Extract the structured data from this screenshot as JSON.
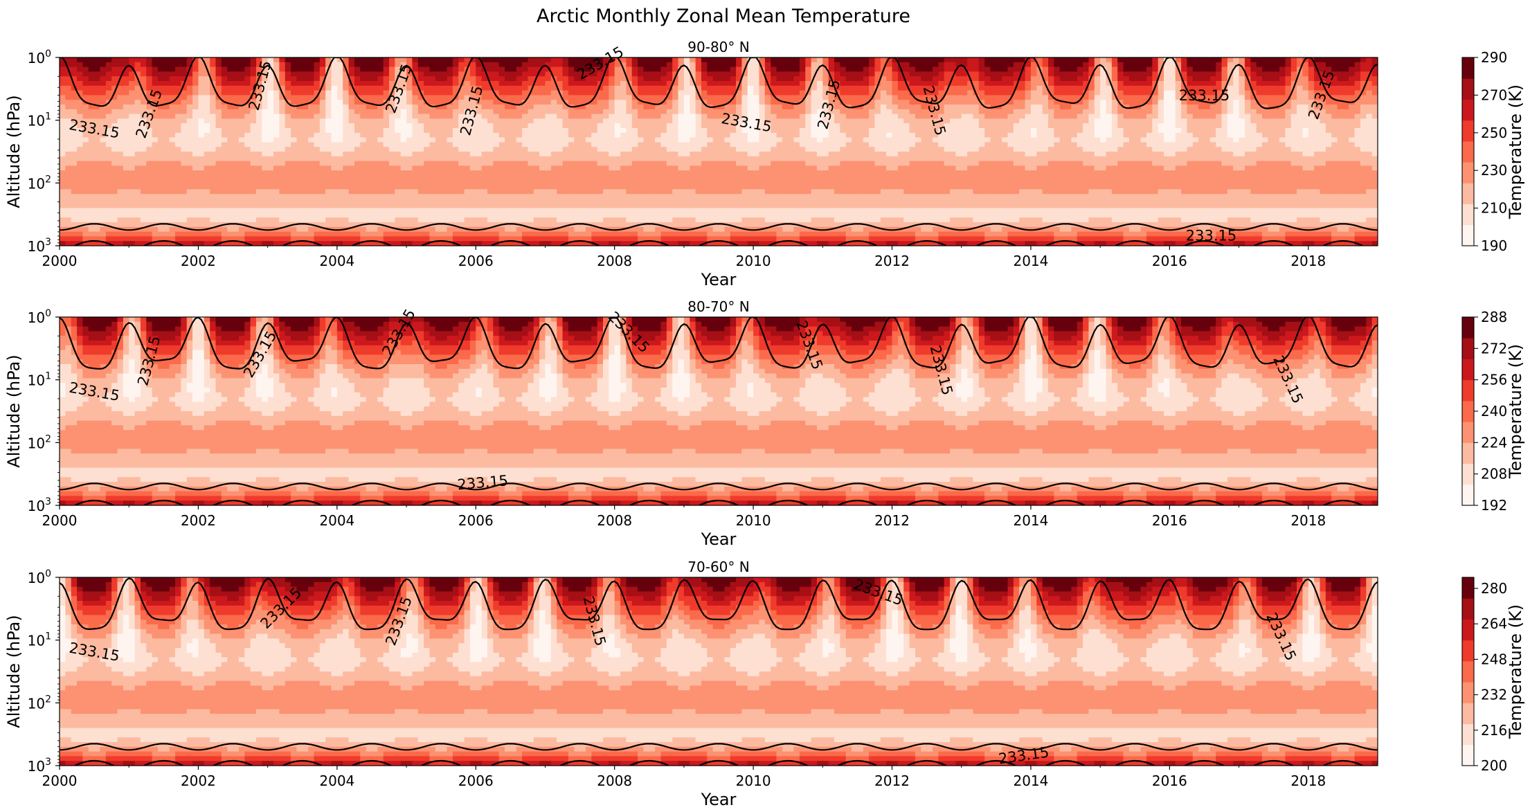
{
  "figure": {
    "title": "Arctic Monthly Zonal Mean Temperature"
  },
  "colors": {
    "scale": [
      "#fff5f0",
      "#fee0d2",
      "#fcbba1",
      "#fc9272",
      "#fb6a4a",
      "#ef3b2c",
      "#cb181d",
      "#a50f15",
      "#67000d"
    ],
    "contour": "#000000"
  },
  "chart_data": [
    {
      "type": "heatmap",
      "title": "90-80° N",
      "xlabel": "Year",
      "ylabel": "Altitude (hPa)",
      "colorbar_label": "Temperature (K)",
      "x_range": [
        2000,
        2019
      ],
      "x_ticks": [
        "2000",
        "2002",
        "2004",
        "2006",
        "2008",
        "2010",
        "2012",
        "2014",
        "2016",
        "2018"
      ],
      "y_scale": "log",
      "y_range_hpa": [
        1000,
        1
      ],
      "y_ticks": [
        {
          "base": "10",
          "exp": "0"
        },
        {
          "base": "10",
          "exp": "1"
        },
        {
          "base": "10",
          "exp": "2"
        },
        {
          "base": "10",
          "exp": "3"
        }
      ],
      "z_range": [
        190,
        290
      ],
      "colorbar_ticks": [
        "290",
        "270",
        "250",
        "230",
        "210",
        "190"
      ],
      "contour_level": 233.15,
      "contour_labels": [
        {
          "text": "233.15",
          "x": 2000.5,
          "logp": 1.15,
          "rot": 10
        },
        {
          "text": "233.15",
          "x": 2001.3,
          "logp": 0.9,
          "rot": -70
        },
        {
          "text": "233.15",
          "x": 2002.9,
          "logp": 0.45,
          "rot": -75
        },
        {
          "text": "233.15",
          "x": 2004.9,
          "logp": 0.5,
          "rot": -70
        },
        {
          "text": "233.15",
          "x": 2005.95,
          "logp": 0.85,
          "rot": -75
        },
        {
          "text": "233.15",
          "x": 2007.8,
          "logp": 0.1,
          "rot": -30
        },
        {
          "text": "233.15",
          "x": 2009.9,
          "logp": 1.05,
          "rot": 10
        },
        {
          "text": "233.15",
          "x": 2011.1,
          "logp": 0.75,
          "rot": -75
        },
        {
          "text": "233.15",
          "x": 2012.6,
          "logp": 0.85,
          "rot": 75
        },
        {
          "text": "233.15",
          "x": 2016.5,
          "logp": 0.62,
          "rot": 0
        },
        {
          "text": "233.15",
          "x": 2018.2,
          "logp": 0.6,
          "rot": -70
        },
        {
          "text": "233.15",
          "x": 2016.6,
          "logp": 2.85,
          "rot": 0
        }
      ]
    },
    {
      "type": "heatmap",
      "title": "80-70° N",
      "xlabel": "Year",
      "ylabel": "Altitude (hPa)",
      "colorbar_label": "Temperature (K)",
      "x_range": [
        2000,
        2019
      ],
      "x_ticks": [
        "2000",
        "2002",
        "2004",
        "2006",
        "2008",
        "2010",
        "2012",
        "2014",
        "2016",
        "2018"
      ],
      "y_scale": "log",
      "y_range_hpa": [
        1000,
        1
      ],
      "y_ticks": [
        {
          "base": "10",
          "exp": "0"
        },
        {
          "base": "10",
          "exp": "1"
        },
        {
          "base": "10",
          "exp": "2"
        },
        {
          "base": "10",
          "exp": "3"
        }
      ],
      "z_range": [
        192,
        288
      ],
      "colorbar_ticks": [
        "288",
        "272",
        "256",
        "240",
        "224",
        "208",
        "192"
      ],
      "contour_level": 233.15,
      "contour_labels": [
        {
          "text": "233.15",
          "x": 2000.5,
          "logp": 1.2,
          "rot": 10
        },
        {
          "text": "233.15",
          "x": 2001.3,
          "logp": 0.7,
          "rot": -75
        },
        {
          "text": "233.15",
          "x": 2002.9,
          "logp": 0.6,
          "rot": -60
        },
        {
          "text": "233.15",
          "x": 2004.9,
          "logp": 0.25,
          "rot": -60
        },
        {
          "text": "233.15",
          "x": 2008.2,
          "logp": 0.25,
          "rot": 45
        },
        {
          "text": "233.15",
          "x": 2010.8,
          "logp": 0.45,
          "rot": 70
        },
        {
          "text": "233.15",
          "x": 2012.7,
          "logp": 0.85,
          "rot": 75
        },
        {
          "text": "233.15",
          "x": 2017.7,
          "logp": 1.0,
          "rot": 65
        },
        {
          "text": "233.15",
          "x": 2006.1,
          "logp": 2.65,
          "rot": -5
        }
      ]
    },
    {
      "type": "heatmap",
      "title": "70-60° N",
      "xlabel": "Year",
      "ylabel": "Altitude (hPa)",
      "colorbar_label": "Temperature (K)",
      "x_range": [
        2000,
        2019
      ],
      "x_ticks": [
        "2000",
        "2002",
        "2004",
        "2006",
        "2008",
        "2010",
        "2012",
        "2014",
        "2016",
        "2018"
      ],
      "y_scale": "log",
      "y_range_hpa": [
        1000,
        1
      ],
      "y_ticks": [
        {
          "base": "10",
          "exp": "0"
        },
        {
          "base": "10",
          "exp": "1"
        },
        {
          "base": "10",
          "exp": "2"
        },
        {
          "base": "10",
          "exp": "3"
        }
      ],
      "z_range": [
        200,
        285
      ],
      "colorbar_ticks": [
        "280",
        "264",
        "248",
        "232",
        "216",
        "200"
      ],
      "contour_level": 233.15,
      "contour_labels": [
        {
          "text": "233.15",
          "x": 2000.5,
          "logp": 1.2,
          "rot": 10
        },
        {
          "text": "233.15",
          "x": 2003.2,
          "logp": 0.5,
          "rot": -45
        },
        {
          "text": "233.15",
          "x": 2004.9,
          "logp": 0.7,
          "rot": -70
        },
        {
          "text": "233.15",
          "x": 2007.7,
          "logp": 0.7,
          "rot": 75
        },
        {
          "text": "233.15",
          "x": 2011.8,
          "logp": 0.25,
          "rot": 20
        },
        {
          "text": "233.15",
          "x": 2017.6,
          "logp": 0.95,
          "rot": 65
        },
        {
          "text": "233.15",
          "x": 2013.9,
          "logp": 2.85,
          "rot": -8
        }
      ]
    }
  ]
}
